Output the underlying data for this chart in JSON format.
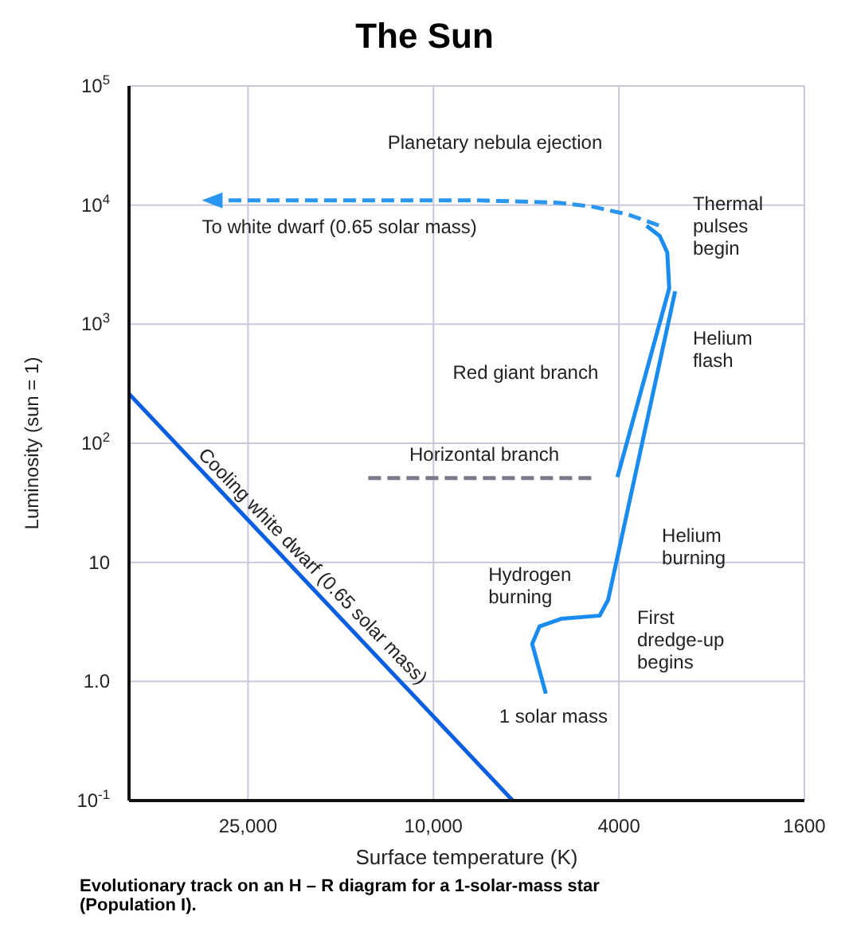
{
  "chart_data": {
    "type": "line",
    "title": "The Sun",
    "xlabel": "Surface temperature (K)",
    "ylabel": "Luminosity (sun = 1)",
    "log": "xy",
    "grid": true,
    "marker": "none",
    "xlim": [
      45000,
      1600
    ],
    "xticks": [
      {
        "value": 25000,
        "label": "25,000"
      },
      {
        "value": 10000,
        "label": "10,000"
      },
      4000,
      1600
    ],
    "ylim": [
      0.1,
      100000
    ],
    "yticks": [
      {
        "value": 0.1,
        "label": "10$^{-1}$"
      },
      {
        "value": 1,
        "label": "1.0"
      },
      10,
      {
        "value": 100,
        "label": "10$^{2}$"
      },
      {
        "value": 1000,
        "label": "10$^{3}$"
      },
      {
        "value": 10000,
        "label": "10$^{4}$"
      },
      {
        "value": 100000,
        "label": "10$^{5}$"
      }
    ],
    "series": [
      {
        "color": "#0a5ee0",
        "line_style": "solid",
        "x": [
          45000,
          6760
        ],
        "values": [
          260,
          0.1
        ]
      },
      {
        "color": "#1a8cf0",
        "line_style": "solid",
        "x": [
          5740,
          6140,
          5920,
          5320,
          4400,
          4220,
          3030
        ],
        "values": [
          0.79,
          2.07,
          2.9,
          3.36,
          3.57,
          4.83,
          1890
        ]
      },
      {
        "color": "#1a8cf0",
        "line_style": "solid",
        "x": [
          4030,
          3120,
          3150,
          3270,
          3490
        ],
        "values": [
          52,
          2000,
          4000,
          5500,
          6700
        ]
      },
      {
        "color": "#7a7a8a",
        "line_style": "dashed",
        "x": [
          13800,
          4510
        ],
        "values": [
          51,
          51
        ]
      }
    ],
    "annotations": [
      "Cooling white dwarf (0.65 solar mass)",
      "Planetary nebula ejection",
      "To white dwarf (0.65 solar mass)",
      "Thermal\npulses\nbegin",
      "Helium\nflash",
      "Red giant branch",
      "Horizontal branch",
      "Helium\nburning",
      "Hydrogen\nburning",
      "First\ndredge-up\nbegins",
      "1 solar mass",
      "Evolutionary track on an H – R diagram for a 1-solar-mass star (Population I)."
    ]
  }
}
